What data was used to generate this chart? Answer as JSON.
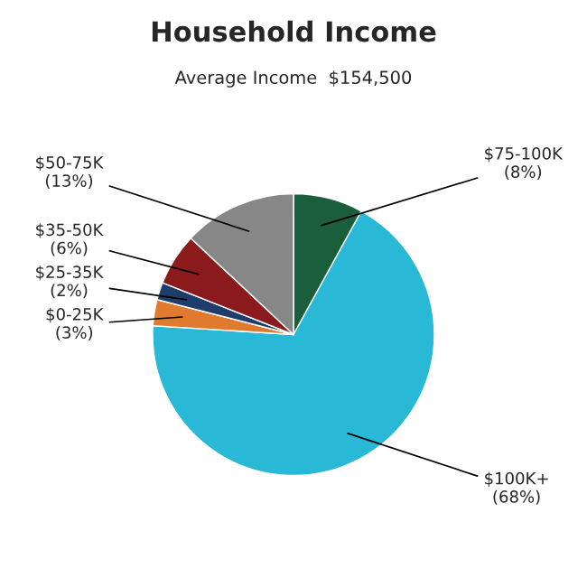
{
  "chart_data": {
    "type": "pie",
    "title": "Household Income",
    "annotations": [
      "Average Income  $154,500"
    ],
    "categories": [
      "$75-100K",
      "$100K+",
      "$0-25K",
      "$25-35K",
      "$35-50K",
      "$50-75K"
    ],
    "values": [
      8,
      68,
      3,
      2,
      6,
      13
    ],
    "value_labels": [
      "(8%)",
      "(68%)",
      "(3%)",
      "(2%)",
      "(6%)",
      "(13%)"
    ],
    "colors": [
      "#1b5e3b",
      "#29b8d6",
      "#e07a2e",
      "#1f3d6b",
      "#8a1a1c",
      "#878787"
    ]
  }
}
